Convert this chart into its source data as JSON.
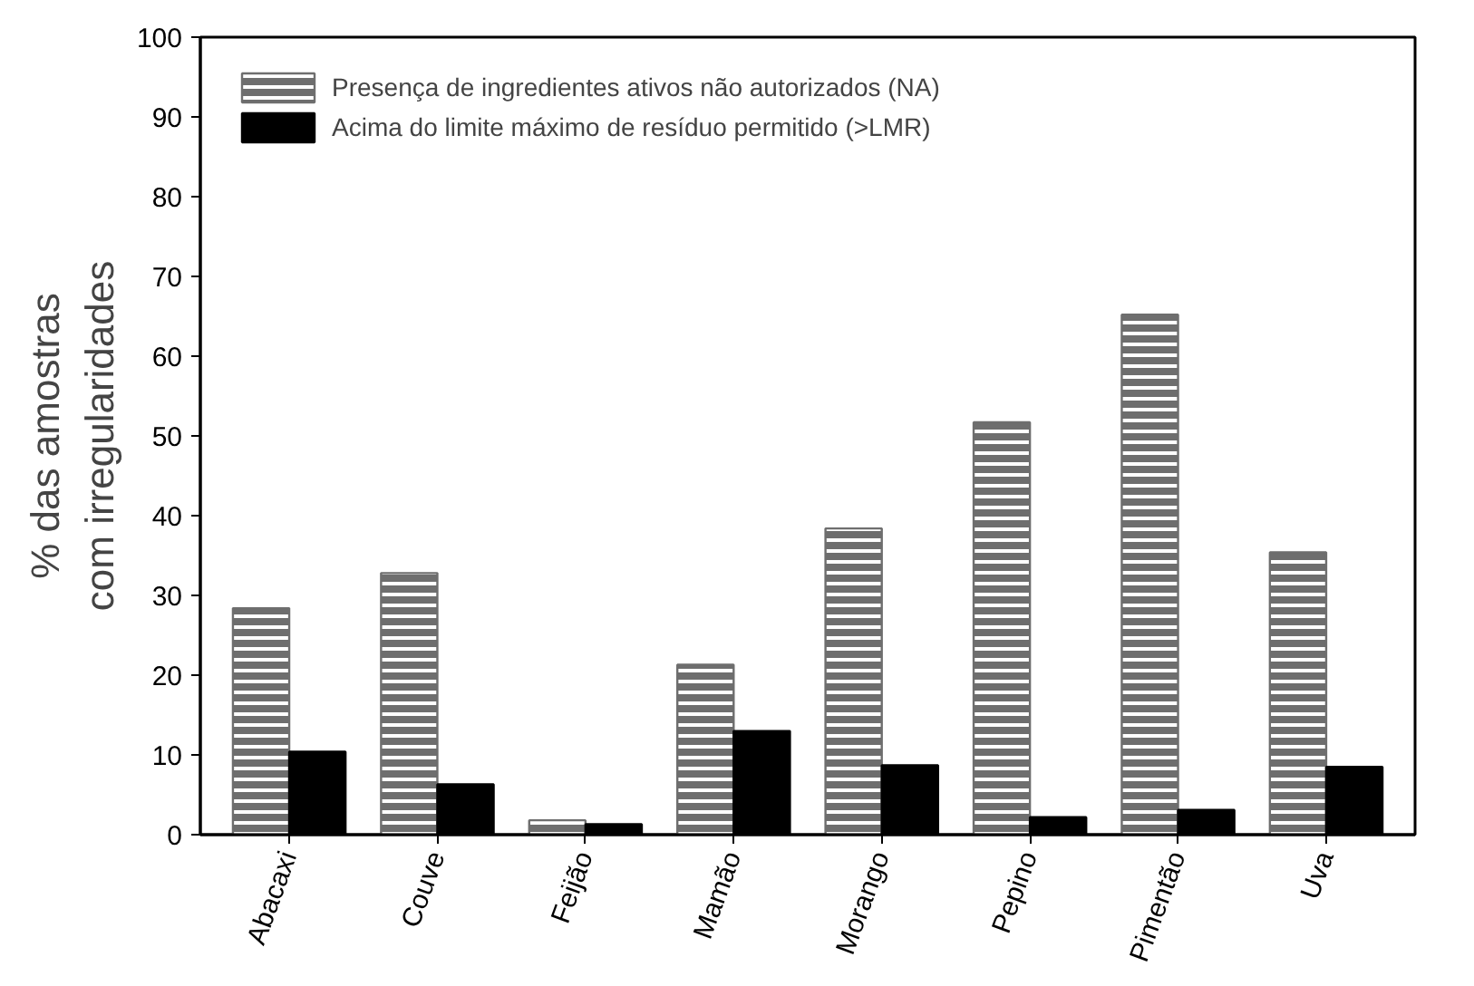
{
  "chart_data": {
    "type": "bar",
    "ylabel": "% das amostras\ncom irregularidades",
    "categories": [
      "Abacaxi",
      "Couve",
      "Feijão",
      "Mamão",
      "Morango",
      "Pepino",
      "Pimentão",
      "Uva"
    ],
    "series": [
      {
        "name": "Presença de ingredientes ativos não autorizados (NA)",
        "color": "#6e6e6e",
        "values": [
          28.4,
          32.8,
          1.8,
          21.3,
          38.4,
          51.7,
          65.2,
          35.4
        ]
      },
      {
        "name": "Acima do limite máximo de resíduo permitido (>LMR)",
        "color": "#000000",
        "values": [
          10.4,
          6.3,
          1.3,
          13.0,
          8.7,
          2.2,
          3.1,
          8.5
        ]
      }
    ],
    "ylim": [
      0,
      100
    ],
    "yticks": [
      0,
      10,
      20,
      30,
      40,
      50,
      60,
      70,
      80,
      90,
      100
    ],
    "grid": false,
    "legend": "top left"
  }
}
